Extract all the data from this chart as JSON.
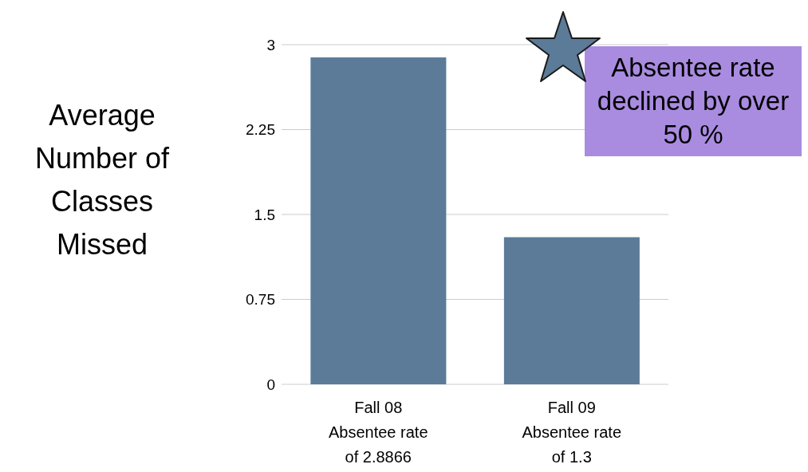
{
  "chart_data": {
    "type": "bar",
    "ylabel": "Average Number of Classes Missed",
    "categories": [
      "Fall 08\nAbsentee rate\nof 2.8866",
      "Fall 09\nAbsentee rate\nof 1.3"
    ],
    "values": [
      2.8866,
      1.3
    ],
    "color": "#5b7b98",
    "ylim": [
      0,
      3
    ],
    "yticks": [
      0,
      0.75,
      1.5,
      2.25,
      3
    ],
    "grid": "y",
    "annotations": [
      "Absentee rate declined by over 50 %"
    ]
  }
}
